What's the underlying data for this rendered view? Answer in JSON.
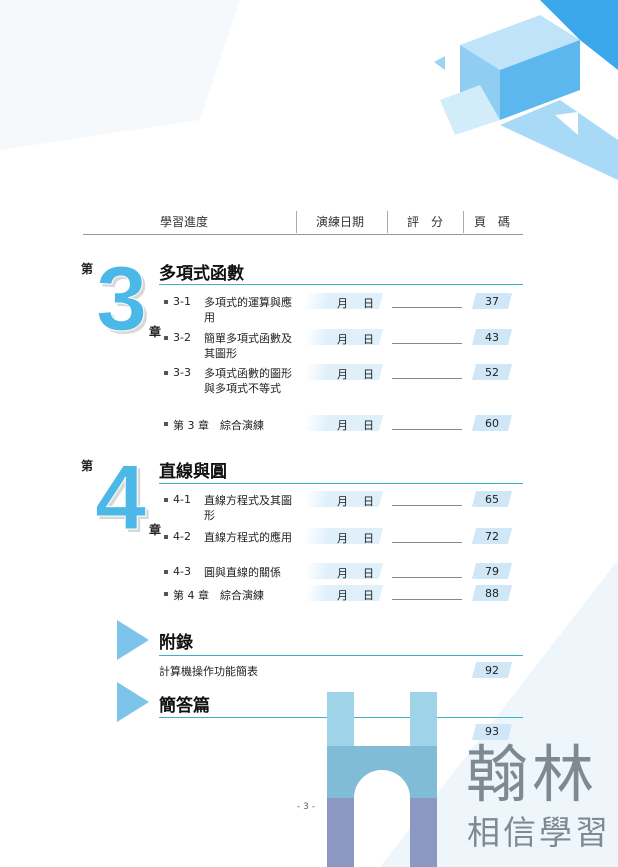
{
  "header": {
    "progress": "學習進度",
    "date": "演練日期",
    "score": "評　分",
    "page": "頁　碼"
  },
  "chapters": [
    {
      "prefix": "第",
      "number": "3",
      "suffix": "章",
      "title": "多項式函數",
      "rows": [
        {
          "code": "3-1",
          "name": "多項式的運算與應用",
          "month": "月",
          "day": "日",
          "page": "37"
        },
        {
          "code": "3-2",
          "name": "簡單多項式函數及其圖形",
          "month": "月",
          "day": "日",
          "page": "43"
        },
        {
          "code": "3-3",
          "name": "多項式函數的圖形與多項式不等式",
          "month": "月",
          "day": "日",
          "page": "52"
        },
        {
          "code": "",
          "name": "第 3 章　綜合演練",
          "month": "月",
          "day": "日",
          "page": "60"
        }
      ]
    },
    {
      "prefix": "第",
      "number": "4",
      "suffix": "章",
      "title": "直線與圓",
      "rows": [
        {
          "code": "4-1",
          "name": "直線方程式及其圖形",
          "month": "月",
          "day": "日",
          "page": "65"
        },
        {
          "code": "4-2",
          "name": "直線方程式的應用",
          "month": "月",
          "day": "日",
          "page": "72"
        },
        {
          "code": "4-3",
          "name": "圓與直線的關係",
          "month": "月",
          "day": "日",
          "page": "79"
        },
        {
          "code": "",
          "name": "第 4 章　綜合演練",
          "month": "月",
          "day": "日",
          "page": "88"
        }
      ]
    }
  ],
  "appendix": {
    "title": "附錄",
    "item": "計算機操作功能簡表",
    "page": "92"
  },
  "answers": {
    "title": "簡答篇",
    "page": "93"
  },
  "page_number": "- 3 -",
  "logo": {
    "name": "翰林",
    "slogan": "相信學習"
  },
  "colors": {
    "accent": "#4cb8e8",
    "line": "#3fb0c8",
    "page_bg": "#cfe7f7"
  }
}
